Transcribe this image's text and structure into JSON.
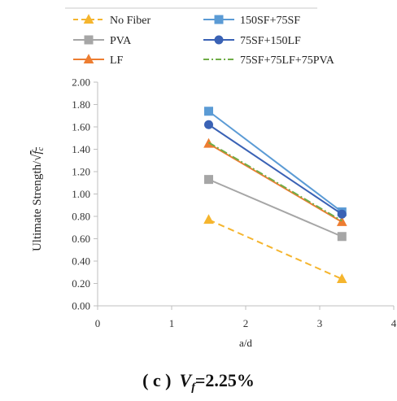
{
  "chart_data": {
    "type": "line",
    "xlabel": "a/d",
    "ylabel_prefix": "Ultimate Strength/",
    "ylabel_radical_symbol": "√",
    "ylabel_radical_arg": "f",
    "ylabel_radical_arg_sub": "c",
    "xlim": [
      0,
      4
    ],
    "ylim": [
      0,
      2
    ],
    "xticks": [
      "0",
      "1",
      "2",
      "3",
      "4"
    ],
    "yticks": [
      "0.00",
      "0.20",
      "0.40",
      "0.60",
      "0.80",
      "1.00",
      "1.20",
      "1.40",
      "1.60",
      "1.80",
      "2.00"
    ],
    "grid": false,
    "legend_position": "top",
    "series": [
      {
        "name": "No Fiber",
        "x": [
          1.5,
          3.3
        ],
        "y": [
          0.77,
          0.24
        ],
        "color": "#f5b52e",
        "marker": "triangle",
        "dash": "dashed"
      },
      {
        "name": "PVA",
        "x": [
          1.5,
          3.3
        ],
        "y": [
          1.13,
          0.62
        ],
        "color": "#a6a6a6",
        "marker": "square",
        "dash": "solid"
      },
      {
        "name": "LF",
        "x": [
          1.5,
          3.3
        ],
        "y": [
          1.45,
          0.75
        ],
        "color": "#ed7d31",
        "marker": "triangle",
        "dash": "solid"
      },
      {
        "name": "150SF+75SF",
        "x": [
          1.5,
          3.3
        ],
        "y": [
          1.74,
          0.84
        ],
        "color": "#5b9bd5",
        "marker": "square",
        "dash": "solid"
      },
      {
        "name": "75SF+150LF",
        "x": [
          1.5,
          3.3
        ],
        "y": [
          1.62,
          0.82
        ],
        "color": "#3a62b5",
        "marker": "circle",
        "dash": "solid"
      },
      {
        "name": "75SF+75LF+75PVA",
        "x": [
          1.5,
          3.3
        ],
        "y": [
          1.46,
          0.76
        ],
        "color": "#70ad47",
        "marker": "none",
        "dash": "dashdot"
      }
    ]
  },
  "caption": {
    "prefix": "( c )",
    "var": "V",
    "var_sub": "f",
    "value": "=2.25%"
  }
}
